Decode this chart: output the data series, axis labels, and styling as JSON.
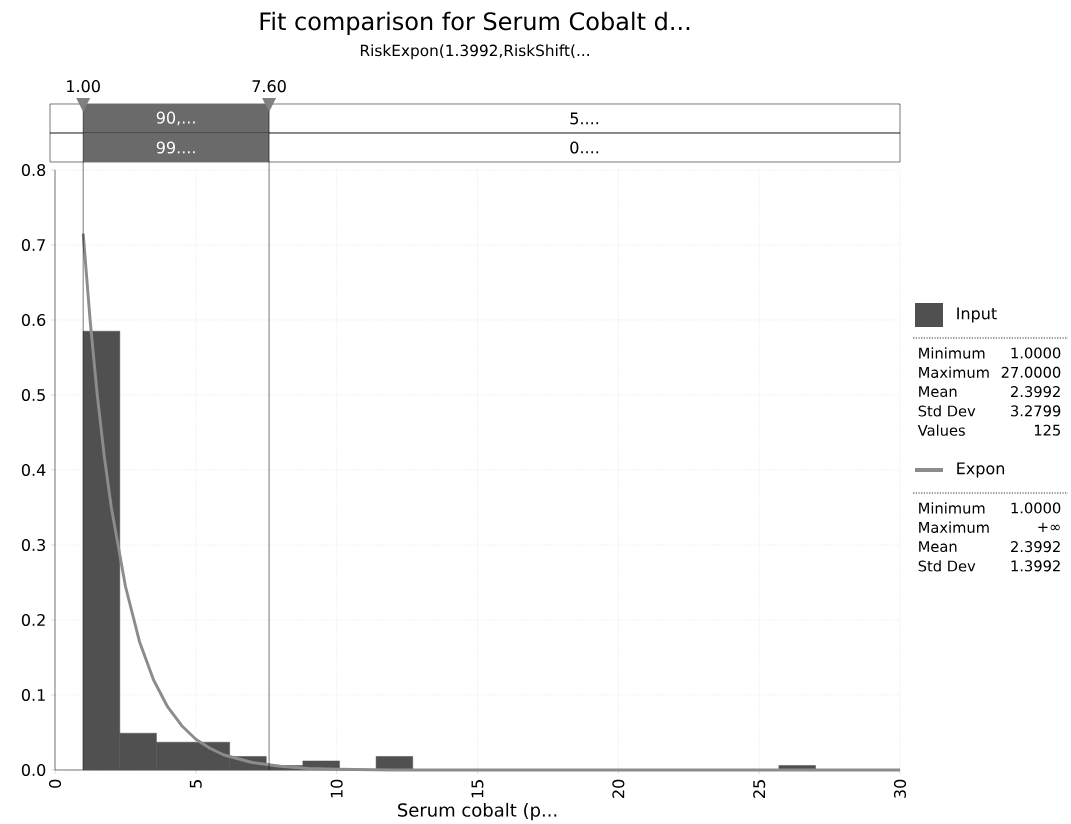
{
  "chart_data": {
    "type": "histogram",
    "title": "Fit comparison for Serum Cobalt d...",
    "subtitle": "RiskExpon(1.3992,RiskShift(...",
    "xlabel": "Serum cobalt (p...",
    "series": [
      {
        "name": "Input",
        "color": "#505050",
        "bins": [
          1.0,
          2.3,
          3.6,
          4.9,
          6.2,
          7.5,
          8.8,
          10.1,
          11.4,
          12.7,
          14.0,
          15.3,
          16.6,
          17.9,
          19.2,
          20.5,
          21.8,
          23.1,
          24.4,
          25.7,
          27.0
        ],
        "values": [
          0.585,
          0.049,
          0.037,
          0.037,
          0.018,
          0.006,
          0.012,
          0,
          0.018,
          0,
          0,
          0,
          0,
          0,
          0,
          0,
          0,
          0,
          0,
          0.006
        ]
      },
      {
        "name": "Expon",
        "type": "line",
        "color": "#8c8c8c",
        "x": [
          1,
          1.25,
          1.5,
          1.75,
          2,
          2.5,
          3,
          3.5,
          4,
          4.5,
          5,
          5.5,
          6,
          7,
          8,
          9,
          10,
          12,
          15,
          30
        ],
        "values": [
          0.715,
          0.598,
          0.5,
          0.418,
          0.35,
          0.245,
          0.171,
          0.12,
          0.084,
          0.059,
          0.041,
          0.029,
          0.02,
          0.01,
          0.005,
          0.002,
          0.001,
          0,
          0,
          0
        ]
      }
    ],
    "xlim": [
      0,
      30
    ],
    "ylim": [
      0,
      0.8
    ],
    "xticks": [
      0,
      5,
      10,
      15,
      20,
      25,
      30
    ],
    "yticks": [
      {
        "value": 0,
        "label": "0.0"
      },
      {
        "value": 0.1,
        "label": "0.1"
      },
      {
        "value": 0.2,
        "label": "0.2"
      },
      {
        "value": 0.3,
        "label": "0.3"
      },
      {
        "value": 0.4,
        "label": "0.4"
      },
      {
        "value": 0.5,
        "label": "0.5"
      },
      {
        "value": 0.6,
        "label": "0.6"
      },
      {
        "value": 0.7,
        "label": "0.7"
      },
      {
        "value": 0.8,
        "label": "0.8"
      }
    ],
    "ref_lines": [
      {
        "axis": "x",
        "value": 1.0,
        "label": "1.00",
        "color": "#000000"
      },
      {
        "axis": "x",
        "value": 7.6,
        "label": "7.60",
        "color": "#000000"
      }
    ],
    "annotations": [
      "90,...",
      "5....",
      "99....",
      "0....",
      "Minimum",
      "1.0000",
      "Maximum",
      "27.0000",
      "Mean",
      "2.3992",
      "Std Dev",
      "3.2799",
      "Values",
      "125",
      "Minimum",
      "1.0000",
      "Maximum",
      "+∞",
      "Mean",
      "2.3992",
      "Std Dev",
      "1.3992"
    ],
    "grid": true,
    "legend": "right",
    "marker": "none",
    "line_style": "solid"
  }
}
